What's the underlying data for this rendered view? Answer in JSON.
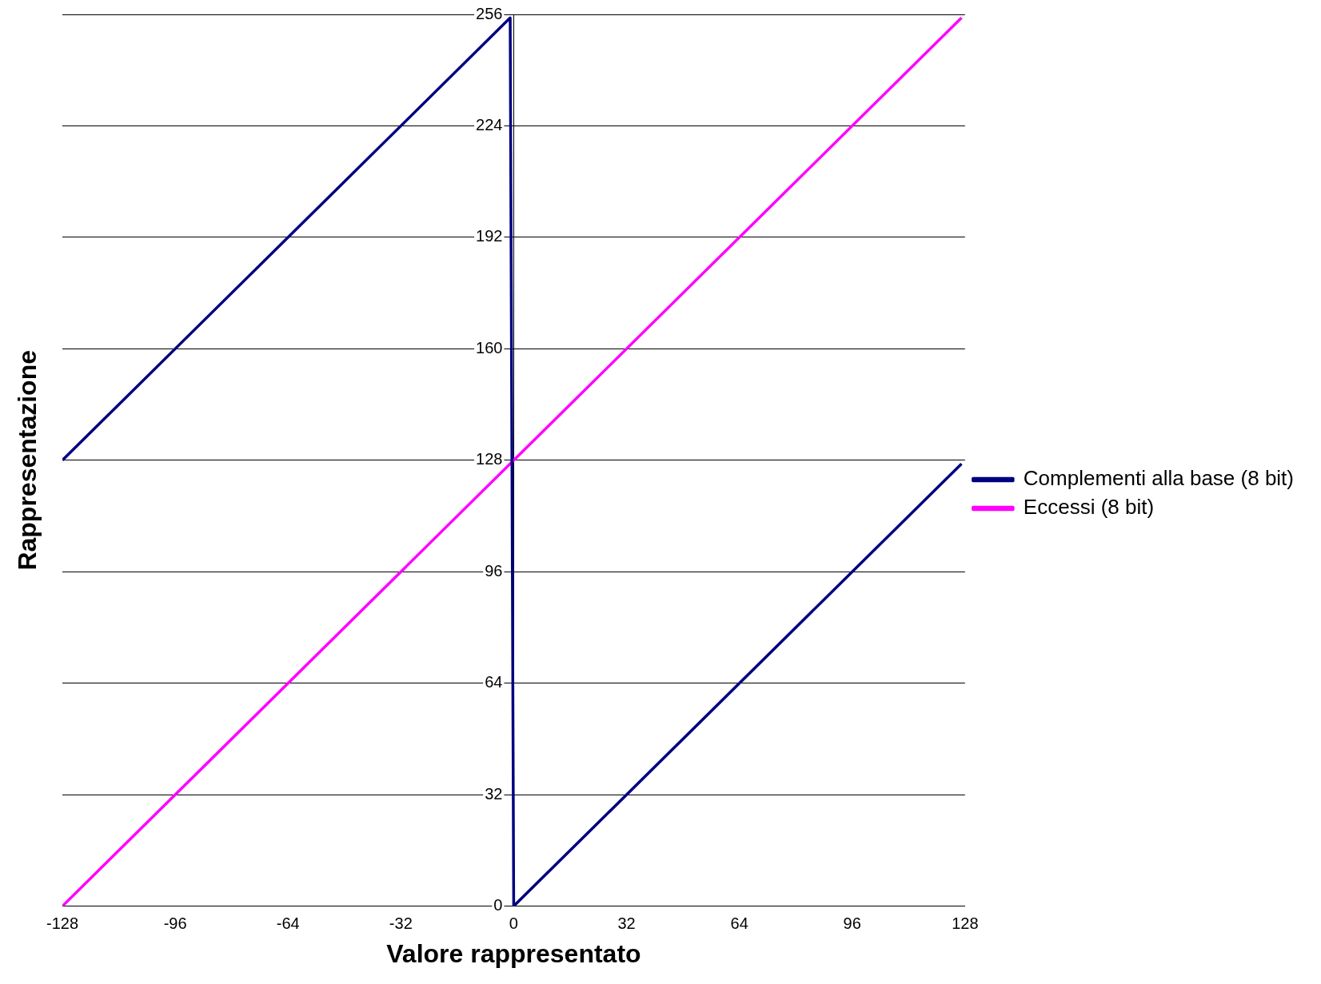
{
  "chart_data": {
    "type": "line",
    "xlabel": "Valore rappresentato",
    "ylabel": "Rappresentazione",
    "series": [
      {
        "name": "Complementi alla base (8 bit)",
        "color": "#000080",
        "x": [
          -128,
          -1,
          0,
          127
        ],
        "values": [
          128,
          255,
          0,
          127
        ]
      },
      {
        "name": "Eccessi (8 bit)",
        "color": "#ff00ff",
        "x": [
          -128,
          127
        ],
        "values": [
          0,
          255
        ]
      }
    ],
    "xlim": [
      -128,
      128
    ],
    "xticks": [
      -128,
      -96,
      -64,
      -32,
      0,
      32,
      64,
      96,
      128
    ],
    "ylim": [
      0,
      256
    ],
    "yticks": [
      0,
      32,
      64,
      96,
      128,
      160,
      192,
      224,
      256
    ],
    "grid": "y",
    "legend": "right",
    "marker": "none",
    "line_style": "solid"
  }
}
